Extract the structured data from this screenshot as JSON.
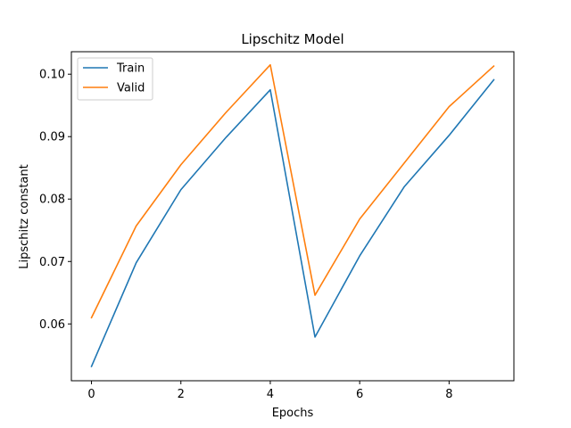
{
  "chart_data": {
    "type": "line",
    "title": "Lipschitz Model",
    "xlabel": "Epochs",
    "ylabel": "Lipschitz constant",
    "x": [
      0,
      1,
      2,
      3,
      4,
      5,
      6,
      7,
      8,
      9
    ],
    "xlim": [
      -0.45,
      9.45
    ],
    "ylim": [
      0.0509,
      0.1036
    ],
    "xticks": [
      0,
      2,
      4,
      6,
      8
    ],
    "yticks": [
      0.06,
      0.07,
      0.08,
      0.09,
      0.1
    ],
    "ytick_labels": [
      "0.06",
      "0.07",
      "0.08",
      "0.09",
      "0.10"
    ],
    "grid": false,
    "legend_position": "top-left",
    "series": [
      {
        "name": "Train",
        "color": "#1f77b4",
        "values": [
          0.0532,
          0.0698,
          0.0815,
          0.0898,
          0.0975,
          0.0579,
          0.0709,
          0.082,
          0.0902,
          0.0991
        ]
      },
      {
        "name": "Valid",
        "color": "#ff7f0e",
        "values": [
          0.061,
          0.0757,
          0.0855,
          0.0938,
          0.1015,
          0.0646,
          0.0768,
          0.0858,
          0.0948,
          0.1013
        ]
      }
    ]
  }
}
